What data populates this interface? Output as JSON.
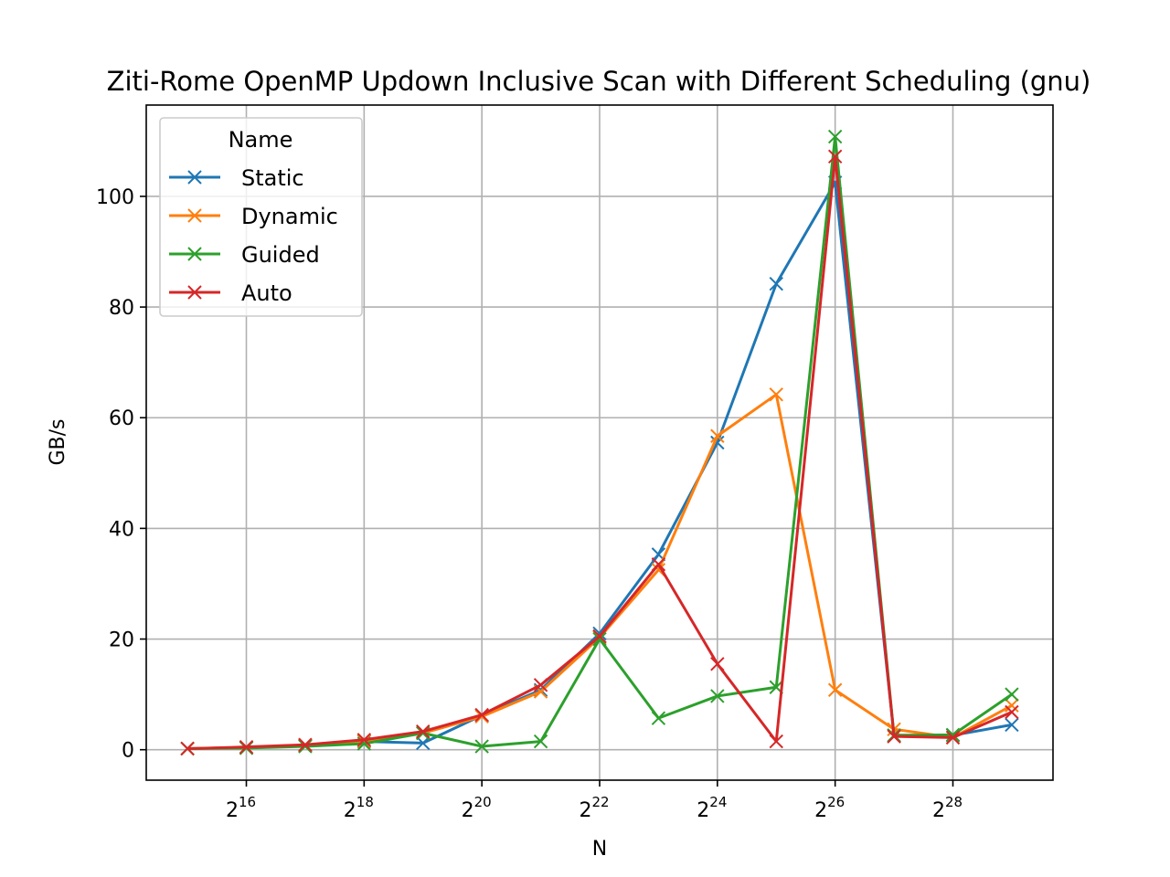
{
  "chart_data": {
    "type": "line",
    "title": "Ziti-Rome OpenMP Updown Inclusive Scan with Different Scheduling (gnu)",
    "xlabel": "N",
    "ylabel": "GB/s",
    "x_scale": "log2",
    "x_exponents": [
      15,
      16,
      17,
      18,
      19,
      20,
      21,
      22,
      23,
      24,
      25,
      26,
      27,
      28,
      29
    ],
    "x_tick_exponents": [
      "16",
      "18",
      "20",
      "22",
      "24",
      "26",
      "28"
    ],
    "x_tick_base": "2",
    "ylim": [
      -5.5,
      116.5
    ],
    "y_ticks": [
      "0",
      "20",
      "40",
      "60",
      "80",
      "100"
    ],
    "grid": true,
    "legend": {
      "title": "Name",
      "position": "top-left"
    },
    "marker": "x",
    "series": [
      {
        "name": "Static",
        "color": "#1f77b4",
        "values": [
          0.2,
          0.4,
          0.7,
          1.5,
          1.2,
          6.2,
          10.8,
          21.0,
          35.3,
          55.5,
          84.2,
          102.5,
          2.6,
          2.6,
          4.5
        ]
      },
      {
        "name": "Dynamic",
        "color": "#ff7f0e",
        "values": [
          0.2,
          0.4,
          0.8,
          1.6,
          3.0,
          6.0,
          10.5,
          20.3,
          32.5,
          56.7,
          64.2,
          10.8,
          3.7,
          2.2,
          8.0
        ]
      },
      {
        "name": "Guided",
        "color": "#2ca02c",
        "values": [
          0.2,
          0.3,
          0.6,
          1.1,
          3.0,
          0.6,
          1.5,
          20.0,
          5.7,
          9.7,
          11.3,
          110.8,
          2.6,
          2.7,
          10.0
        ]
      },
      {
        "name": "Auto",
        "color": "#d62728",
        "values": [
          0.2,
          0.5,
          0.9,
          1.8,
          3.3,
          6.3,
          11.7,
          20.5,
          33.5,
          15.5,
          1.5,
          107.2,
          2.4,
          2.2,
          6.8
        ]
      }
    ]
  }
}
